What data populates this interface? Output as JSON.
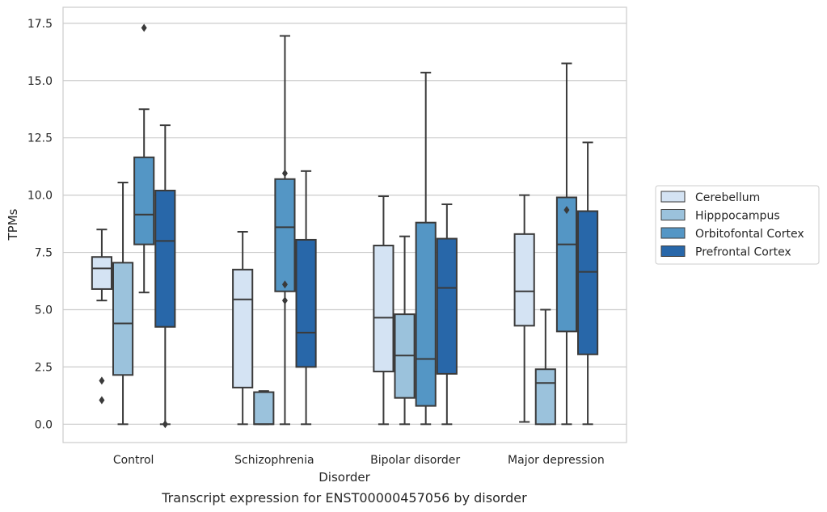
{
  "chart_data": {
    "type": "box",
    "caption": "Transcript expression for ENST00000457056 by disorder",
    "xlabel": "Disorder",
    "ylabel": "TPMs",
    "ylim": [
      -0.8,
      18.2
    ],
    "yticks": [
      "0.0",
      "2.5",
      "5.0",
      "7.5",
      "10.0",
      "12.5",
      "15.0",
      "17.5"
    ],
    "ytick_values": [
      0,
      2.5,
      5,
      7.5,
      10,
      12.5,
      15,
      17.5
    ],
    "grid": true,
    "legend_position": "right",
    "categories": [
      "Control",
      "Schizophrenia",
      "Bipolar disorder",
      "Major depression"
    ],
    "series": [
      {
        "name": "Cerebellum",
        "color": "#d4e3f3",
        "boxes": [
          {
            "whislo": 5.4,
            "q1": 5.9,
            "med": 6.8,
            "q3": 7.3,
            "whishi": 8.5,
            "fliers": [
              1.05,
              1.9
            ]
          },
          {
            "whislo": 0.0,
            "q1": 1.6,
            "med": 5.45,
            "q3": 6.75,
            "whishi": 8.4,
            "fliers": []
          },
          {
            "whislo": 0.0,
            "q1": 2.3,
            "med": 4.65,
            "q3": 7.8,
            "whishi": 9.95,
            "fliers": []
          },
          {
            "whislo": 0.1,
            "q1": 4.3,
            "med": 5.8,
            "q3": 8.3,
            "whishi": 10.0,
            "fliers": []
          }
        ]
      },
      {
        "name": "Hipppocampus",
        "color": "#9bc2dc",
        "boxes": [
          {
            "whislo": 0.0,
            "q1": 2.15,
            "med": 4.4,
            "q3": 7.05,
            "whishi": 10.55,
            "fliers": []
          },
          {
            "whislo": 0.0,
            "q1": 0.0,
            "med": 0.0,
            "q3": 1.4,
            "whishi": 1.45,
            "fliers": []
          },
          {
            "whislo": 0.0,
            "q1": 1.15,
            "med": 3.0,
            "q3": 4.8,
            "whishi": 8.2,
            "fliers": []
          },
          {
            "whislo": 0.0,
            "q1": 0.0,
            "med": 1.8,
            "q3": 2.4,
            "whishi": 5.0,
            "fliers": []
          }
        ]
      },
      {
        "name": "Orbitofontal Cortex",
        "color": "#5496c5",
        "boxes": [
          {
            "whislo": 5.75,
            "q1": 7.85,
            "med": 9.15,
            "q3": 11.65,
            "whishi": 13.75,
            "fliers": [
              17.3
            ]
          },
          {
            "whislo": 0.0,
            "q1": 5.8,
            "med": 8.6,
            "q3": 10.7,
            "whishi": 16.95,
            "fliers": [
              10.95,
              6.1,
              5.4
            ]
          },
          {
            "whislo": 0.0,
            "q1": 0.8,
            "med": 2.85,
            "q3": 8.8,
            "whishi": 15.35,
            "fliers": []
          },
          {
            "whislo": 0.0,
            "q1": 4.05,
            "med": 7.85,
            "q3": 9.9,
            "whishi": 15.75,
            "fliers": [
              9.35
            ]
          }
        ]
      },
      {
        "name": "Prefrontal Cortex",
        "color": "#2867a9",
        "boxes": [
          {
            "whislo": 0.0,
            "q1": 4.25,
            "med": 8.0,
            "q3": 10.2,
            "whishi": 13.05,
            "fliers": [
              0.0
            ]
          },
          {
            "whislo": 0.0,
            "q1": 2.5,
            "med": 4.0,
            "q3": 8.05,
            "whishi": 11.05,
            "fliers": []
          },
          {
            "whislo": 0.0,
            "q1": 2.2,
            "med": 5.95,
            "q3": 8.1,
            "whishi": 9.6,
            "fliers": []
          },
          {
            "whislo": 0.0,
            "q1": 3.05,
            "med": 6.65,
            "q3": 9.3,
            "whishi": 12.3,
            "fliers": []
          }
        ]
      }
    ]
  }
}
